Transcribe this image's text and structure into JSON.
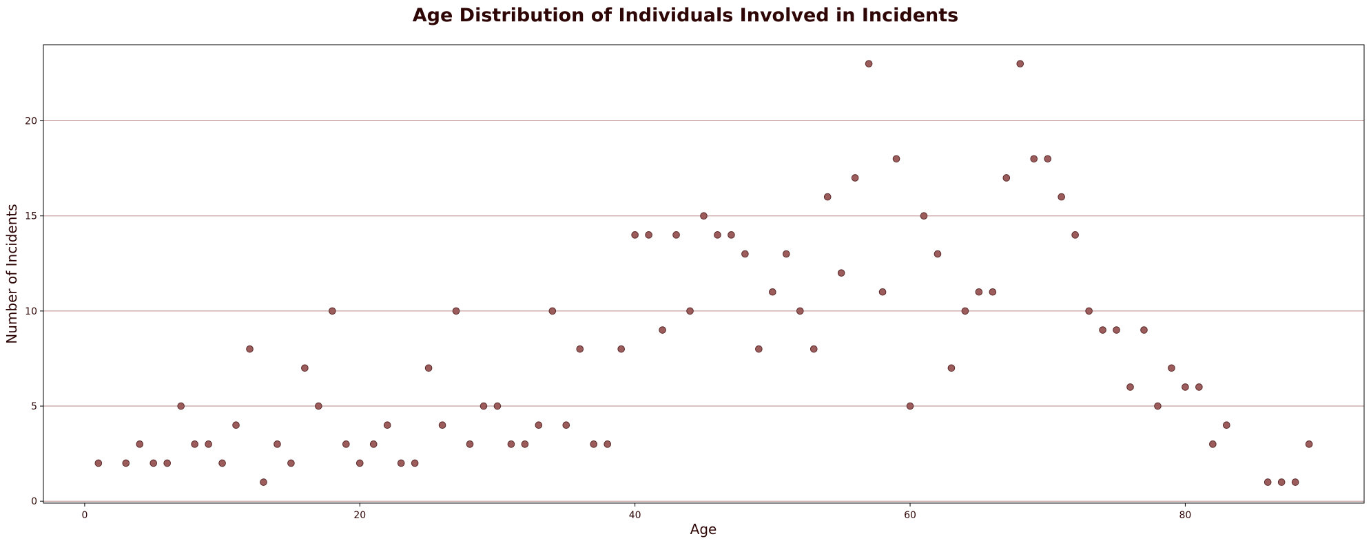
{
  "chart_data": {
    "type": "scatter",
    "title": "Age Distribution of Individuals Involved in Incidents",
    "xlabel": "Age",
    "ylabel": "Number of Incidents",
    "xlim": [
      -3,
      93
    ],
    "ylim": [
      -0.1,
      24
    ],
    "xticks": [
      0,
      20,
      40,
      60,
      80
    ],
    "yticks": [
      0,
      5,
      10,
      15,
      20
    ],
    "grid": "horizontal",
    "point_color": "#9c5c5c",
    "point_edge_color": "#5a2a2a",
    "grid_color": "#b78585",
    "text_color": "#2e0606",
    "points": [
      {
        "x": 1,
        "y": 2
      },
      {
        "x": 3,
        "y": 2
      },
      {
        "x": 4,
        "y": 3
      },
      {
        "x": 5,
        "y": 2
      },
      {
        "x": 6,
        "y": 2
      },
      {
        "x": 7,
        "y": 5
      },
      {
        "x": 8,
        "y": 3
      },
      {
        "x": 9,
        "y": 3
      },
      {
        "x": 10,
        "y": 2
      },
      {
        "x": 11,
        "y": 4
      },
      {
        "x": 12,
        "y": 8
      },
      {
        "x": 13,
        "y": 1
      },
      {
        "x": 14,
        "y": 3
      },
      {
        "x": 15,
        "y": 2
      },
      {
        "x": 16,
        "y": 7
      },
      {
        "x": 17,
        "y": 5
      },
      {
        "x": 18,
        "y": 10
      },
      {
        "x": 19,
        "y": 3
      },
      {
        "x": 20,
        "y": 2
      },
      {
        "x": 21,
        "y": 3
      },
      {
        "x": 22,
        "y": 4
      },
      {
        "x": 23,
        "y": 2
      },
      {
        "x": 24,
        "y": 2
      },
      {
        "x": 25,
        "y": 7
      },
      {
        "x": 26,
        "y": 4
      },
      {
        "x": 27,
        "y": 10
      },
      {
        "x": 28,
        "y": 3
      },
      {
        "x": 29,
        "y": 5
      },
      {
        "x": 30,
        "y": 5
      },
      {
        "x": 31,
        "y": 3
      },
      {
        "x": 32,
        "y": 3
      },
      {
        "x": 33,
        "y": 4
      },
      {
        "x": 34,
        "y": 10
      },
      {
        "x": 35,
        "y": 4
      },
      {
        "x": 36,
        "y": 8
      },
      {
        "x": 37,
        "y": 3
      },
      {
        "x": 38,
        "y": 3
      },
      {
        "x": 39,
        "y": 8
      },
      {
        "x": 40,
        "y": 14
      },
      {
        "x": 41,
        "y": 14
      },
      {
        "x": 42,
        "y": 9
      },
      {
        "x": 43,
        "y": 14
      },
      {
        "x": 44,
        "y": 10
      },
      {
        "x": 45,
        "y": 15
      },
      {
        "x": 46,
        "y": 14
      },
      {
        "x": 47,
        "y": 14
      },
      {
        "x": 48,
        "y": 13
      },
      {
        "x": 49,
        "y": 8
      },
      {
        "x": 50,
        "y": 11
      },
      {
        "x": 51,
        "y": 13
      },
      {
        "x": 52,
        "y": 10
      },
      {
        "x": 53,
        "y": 8
      },
      {
        "x": 54,
        "y": 16
      },
      {
        "x": 55,
        "y": 12
      },
      {
        "x": 56,
        "y": 17
      },
      {
        "x": 57,
        "y": 23
      },
      {
        "x": 58,
        "y": 11
      },
      {
        "x": 59,
        "y": 18
      },
      {
        "x": 60,
        "y": 5
      },
      {
        "x": 61,
        "y": 15
      },
      {
        "x": 62,
        "y": 13
      },
      {
        "x": 63,
        "y": 7
      },
      {
        "x": 64,
        "y": 10
      },
      {
        "x": 65,
        "y": 11
      },
      {
        "x": 66,
        "y": 11
      },
      {
        "x": 67,
        "y": 17
      },
      {
        "x": 68,
        "y": 23
      },
      {
        "x": 69,
        "y": 18
      },
      {
        "x": 70,
        "y": 18
      },
      {
        "x": 71,
        "y": 16
      },
      {
        "x": 72,
        "y": 14
      },
      {
        "x": 73,
        "y": 10
      },
      {
        "x": 74,
        "y": 9
      },
      {
        "x": 75,
        "y": 9
      },
      {
        "x": 76,
        "y": 6
      },
      {
        "x": 77,
        "y": 9
      },
      {
        "x": 78,
        "y": 5
      },
      {
        "x": 79,
        "y": 7
      },
      {
        "x": 80,
        "y": 6
      },
      {
        "x": 81,
        "y": 6
      },
      {
        "x": 82,
        "y": 3
      },
      {
        "x": 83,
        "y": 4
      },
      {
        "x": 86,
        "y": 1
      },
      {
        "x": 87,
        "y": 1
      },
      {
        "x": 88,
        "y": 1
      },
      {
        "x": 89,
        "y": 3
      }
    ]
  }
}
